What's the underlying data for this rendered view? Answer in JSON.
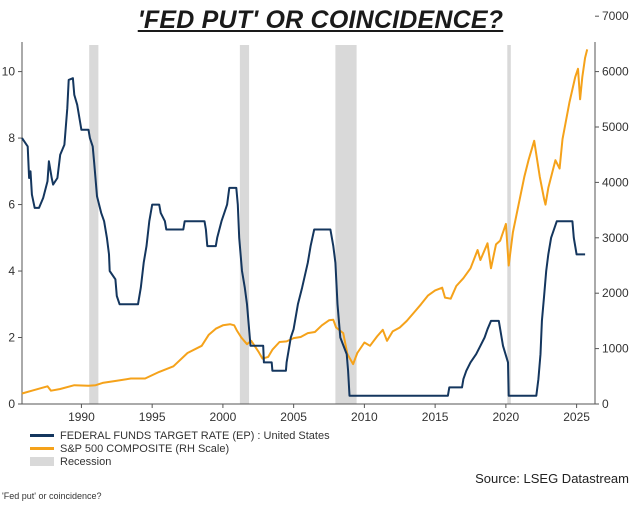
{
  "page": {
    "title": "'FED PUT' OR COINCIDENCE?",
    "source": "Source: LSEG Datastream",
    "caption": "'Fed put' or coincidence?"
  },
  "chart_data": {
    "type": "line",
    "title": "'FED PUT' OR COINCIDENCE?",
    "xlim": [
      1985.8,
      2026.3
    ],
    "ylim_left": [
      0,
      10.8
    ],
    "ylim_right": [
      0,
      6480
    ],
    "x_ticks": [
      1990,
      1995,
      2000,
      2005,
      2010,
      2015,
      2020,
      2025
    ],
    "y_left_ticks": [
      0,
      2,
      4,
      6,
      8,
      10
    ],
    "y_right_ticks": [
      0,
      1000,
      2000,
      3000,
      4000,
      5000,
      6000,
      7000
    ],
    "grid": false,
    "legend_position": "bottom-left",
    "colors": {
      "fed": "#14365e",
      "spx": "#f5a21a",
      "recession": "#d9d9d9"
    },
    "recessions": [
      [
        1990.55,
        1991.2
      ],
      [
        2001.2,
        2001.85
      ],
      [
        2007.95,
        2009.45
      ],
      [
        2020.1,
        2020.35
      ]
    ],
    "legend": [
      {
        "label": "FEDERAL FUNDS TARGET RATE (EP) : United States",
        "kind": "line",
        "color": "#14365e"
      },
      {
        "label": "S&P 500 COMPOSITE (RH Scale)",
        "kind": "line",
        "color": "#f5a21a"
      },
      {
        "label": "Recession",
        "kind": "box",
        "color": "#d9d9d9"
      }
    ],
    "series": [
      {
        "name": "FEDERAL FUNDS TARGET RATE (EP) : United States",
        "axis": "left",
        "points": [
          [
            1985.8,
            8.0
          ],
          [
            1986.2,
            7.75
          ],
          [
            1986.3,
            6.8
          ],
          [
            1986.4,
            7.0
          ],
          [
            1986.5,
            6.3
          ],
          [
            1986.7,
            5.9
          ],
          [
            1987.0,
            5.9
          ],
          [
            1987.3,
            6.2
          ],
          [
            1987.6,
            6.7
          ],
          [
            1987.7,
            7.3
          ],
          [
            1987.9,
            6.8
          ],
          [
            1988.0,
            6.6
          ],
          [
            1988.3,
            6.8
          ],
          [
            1988.5,
            7.5
          ],
          [
            1988.8,
            7.8
          ],
          [
            1989.0,
            8.9
          ],
          [
            1989.1,
            9.75
          ],
          [
            1989.4,
            9.8
          ],
          [
            1989.5,
            9.3
          ],
          [
            1989.7,
            9.0
          ],
          [
            1989.9,
            8.5
          ],
          [
            1990.0,
            8.25
          ],
          [
            1990.5,
            8.25
          ],
          [
            1990.6,
            8.0
          ],
          [
            1990.8,
            7.75
          ],
          [
            1990.9,
            7.25
          ],
          [
            1991.1,
            6.25
          ],
          [
            1991.4,
            5.75
          ],
          [
            1991.6,
            5.5
          ],
          [
            1991.8,
            5.0
          ],
          [
            1991.95,
            4.5
          ],
          [
            1992.0,
            4.0
          ],
          [
            1992.4,
            3.75
          ],
          [
            1992.5,
            3.25
          ],
          [
            1992.7,
            3.0
          ],
          [
            1994.0,
            3.0
          ],
          [
            1994.2,
            3.5
          ],
          [
            1994.4,
            4.25
          ],
          [
            1994.6,
            4.75
          ],
          [
            1994.8,
            5.5
          ],
          [
            1995.0,
            6.0
          ],
          [
            1995.5,
            6.0
          ],
          [
            1995.6,
            5.75
          ],
          [
            1995.9,
            5.5
          ],
          [
            1996.0,
            5.25
          ],
          [
            1997.2,
            5.25
          ],
          [
            1997.3,
            5.5
          ],
          [
            1998.7,
            5.5
          ],
          [
            1998.8,
            5.25
          ],
          [
            1998.9,
            4.75
          ],
          [
            1999.5,
            4.75
          ],
          [
            1999.6,
            5.0
          ],
          [
            1999.9,
            5.5
          ],
          [
            2000.1,
            5.75
          ],
          [
            2000.3,
            6.0
          ],
          [
            2000.45,
            6.5
          ],
          [
            2000.95,
            6.5
          ],
          [
            2001.05,
            6.0
          ],
          [
            2001.15,
            5.0
          ],
          [
            2001.35,
            4.0
          ],
          [
            2001.55,
            3.5
          ],
          [
            2001.7,
            3.0
          ],
          [
            2001.8,
            2.5
          ],
          [
            2001.9,
            2.0
          ],
          [
            2001.95,
            1.75
          ],
          [
            2002.85,
            1.75
          ],
          [
            2002.9,
            1.25
          ],
          [
            2003.45,
            1.25
          ],
          [
            2003.5,
            1.0
          ],
          [
            2004.45,
            1.0
          ],
          [
            2004.5,
            1.25
          ],
          [
            2004.8,
            2.0
          ],
          [
            2005.0,
            2.25
          ],
          [
            2005.3,
            3.0
          ],
          [
            2005.6,
            3.5
          ],
          [
            2006.0,
            4.25
          ],
          [
            2006.2,
            4.75
          ],
          [
            2006.45,
            5.25
          ],
          [
            2007.6,
            5.25
          ],
          [
            2007.8,
            4.75
          ],
          [
            2007.95,
            4.25
          ],
          [
            2008.1,
            3.0
          ],
          [
            2008.3,
            2.0
          ],
          [
            2008.75,
            1.5
          ],
          [
            2008.85,
            1.0
          ],
          [
            2008.95,
            0.25
          ],
          [
            2015.9,
            0.25
          ],
          [
            2016.0,
            0.5
          ],
          [
            2016.9,
            0.5
          ],
          [
            2017.0,
            0.75
          ],
          [
            2017.2,
            1.0
          ],
          [
            2017.5,
            1.25
          ],
          [
            2017.9,
            1.5
          ],
          [
            2018.2,
            1.75
          ],
          [
            2018.5,
            2.0
          ],
          [
            2018.7,
            2.25
          ],
          [
            2018.95,
            2.5
          ],
          [
            2019.5,
            2.5
          ],
          [
            2019.6,
            2.25
          ],
          [
            2019.7,
            2.0
          ],
          [
            2019.8,
            1.75
          ],
          [
            2020.15,
            1.25
          ],
          [
            2020.2,
            0.25
          ],
          [
            2022.15,
            0.25
          ],
          [
            2022.3,
            0.75
          ],
          [
            2022.45,
            1.5
          ],
          [
            2022.55,
            2.5
          ],
          [
            2022.7,
            3.25
          ],
          [
            2022.85,
            4.0
          ],
          [
            2023.0,
            4.5
          ],
          [
            2023.2,
            5.0
          ],
          [
            2023.6,
            5.5
          ],
          [
            2024.7,
            5.5
          ],
          [
            2024.8,
            5.0
          ],
          [
            2024.9,
            4.75
          ],
          [
            2025.0,
            4.5
          ],
          [
            2025.6,
            4.5
          ]
        ]
      },
      {
        "name": "S&P 500 COMPOSITE (RH Scale)",
        "axis": "right",
        "points": [
          [
            1985.8,
            190
          ],
          [
            1986.5,
            240
          ],
          [
            1987.6,
            320
          ],
          [
            1987.85,
            240
          ],
          [
            1988.5,
            270
          ],
          [
            1989.5,
            340
          ],
          [
            1990.5,
            330
          ],
          [
            1991.0,
            340
          ],
          [
            1991.5,
            380
          ],
          [
            1992.5,
            420
          ],
          [
            1993.5,
            460
          ],
          [
            1994.5,
            460
          ],
          [
            1995.5,
            580
          ],
          [
            1996.5,
            680
          ],
          [
            1997.5,
            920
          ],
          [
            1998.5,
            1050
          ],
          [
            1999.0,
            1250
          ],
          [
            1999.5,
            1360
          ],
          [
            2000.0,
            1420
          ],
          [
            2000.5,
            1440
          ],
          [
            2000.8,
            1420
          ],
          [
            2001.0,
            1320
          ],
          [
            2001.3,
            1200
          ],
          [
            2001.7,
            1080
          ],
          [
            2002.0,
            1140
          ],
          [
            2002.5,
            950
          ],
          [
            2002.8,
            820
          ],
          [
            2003.2,
            850
          ],
          [
            2003.5,
            980
          ],
          [
            2004.0,
            1120
          ],
          [
            2004.5,
            1130
          ],
          [
            2005.0,
            1190
          ],
          [
            2005.5,
            1210
          ],
          [
            2006.0,
            1280
          ],
          [
            2006.5,
            1300
          ],
          [
            2007.0,
            1420
          ],
          [
            2007.5,
            1510
          ],
          [
            2007.8,
            1520
          ],
          [
            2008.0,
            1380
          ],
          [
            2008.5,
            1280
          ],
          [
            2008.8,
            900
          ],
          [
            2009.2,
            720
          ],
          [
            2009.5,
            920
          ],
          [
            2010.0,
            1110
          ],
          [
            2010.4,
            1050
          ],
          [
            2010.9,
            1220
          ],
          [
            2011.3,
            1340
          ],
          [
            2011.6,
            1140
          ],
          [
            2012.0,
            1310
          ],
          [
            2012.5,
            1380
          ],
          [
            2013.0,
            1500
          ],
          [
            2013.5,
            1650
          ],
          [
            2014.0,
            1800
          ],
          [
            2014.5,
            1960
          ],
          [
            2015.0,
            2050
          ],
          [
            2015.5,
            2100
          ],
          [
            2015.7,
            1920
          ],
          [
            2016.1,
            1900
          ],
          [
            2016.5,
            2130
          ],
          [
            2017.0,
            2270
          ],
          [
            2017.5,
            2450
          ],
          [
            2018.0,
            2780
          ],
          [
            2018.2,
            2600
          ],
          [
            2018.7,
            2900
          ],
          [
            2018.95,
            2450
          ],
          [
            2019.3,
            2880
          ],
          [
            2019.6,
            2950
          ],
          [
            2020.0,
            3250
          ],
          [
            2020.2,
            2500
          ],
          [
            2020.5,
            3100
          ],
          [
            2020.9,
            3600
          ],
          [
            2021.3,
            4100
          ],
          [
            2021.6,
            4400
          ],
          [
            2022.0,
            4750
          ],
          [
            2022.4,
            4100
          ],
          [
            2022.7,
            3700
          ],
          [
            2022.8,
            3600
          ],
          [
            2023.0,
            3900
          ],
          [
            2023.5,
            4400
          ],
          [
            2023.8,
            4250
          ],
          [
            2024.0,
            4780
          ],
          [
            2024.5,
            5450
          ],
          [
            2024.9,
            5900
          ],
          [
            2025.1,
            6050
          ],
          [
            2025.25,
            5500
          ],
          [
            2025.4,
            5900
          ],
          [
            2025.6,
            6250
          ],
          [
            2025.75,
            6400
          ]
        ]
      }
    ]
  }
}
